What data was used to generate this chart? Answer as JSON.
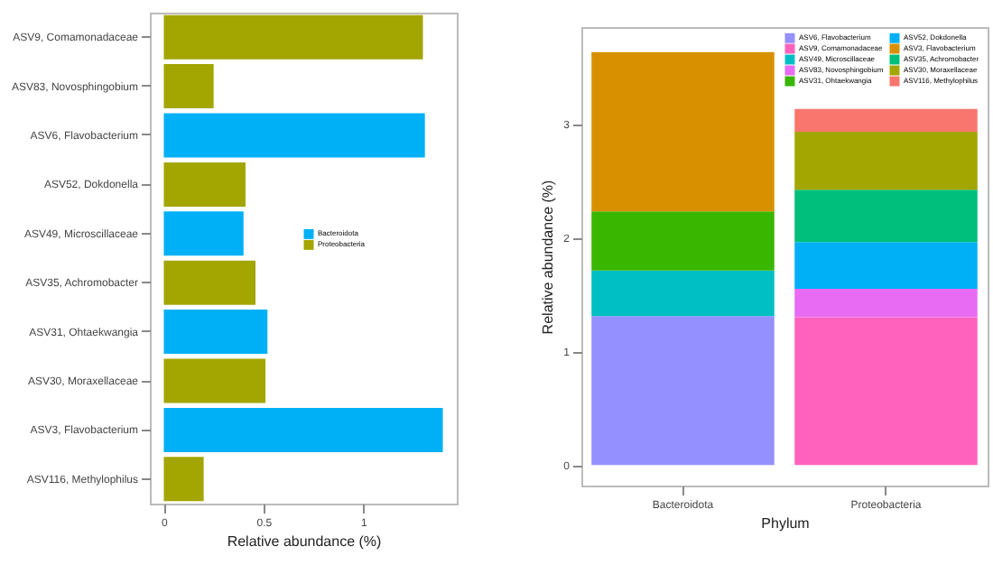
{
  "chart_data": [
    {
      "type": "bar",
      "orientation": "horizontal",
      "categories": [
        "ASV9, Comamonadaceae",
        "ASV83, Novosphingobium",
        "ASV6, Flavobacterium",
        "ASV52, Dokdonella",
        "ASV49, Microscillaceae",
        "ASV35, Achromobacter",
        "ASV31, Ohtaekwangia",
        "ASV30, Moraxellaceae",
        "ASV3, Flavobacterium",
        "ASV116, Methylophilus"
      ],
      "series": [
        {
          "name": "Bacteroidota",
          "color": "#00b0f6",
          "values": [
            null,
            null,
            1.31,
            null,
            0.4,
            null,
            0.52,
            null,
            1.4,
            null
          ]
        },
        {
          "name": "Proteobacteria",
          "color": "#a3a500",
          "values": [
            1.3,
            0.25,
            null,
            0.41,
            null,
            0.46,
            null,
            0.51,
            null,
            0.2
          ]
        }
      ],
      "xlabel": "Relative abundance (%)",
      "xlim": [
        -0.07,
        1.47
      ],
      "xticks": [
        0,
        0.5,
        1
      ],
      "grid": false,
      "legend": "right"
    },
    {
      "type": "bar",
      "stacked": true,
      "categories": [
        "Bacteroidota",
        "Proteobacteria"
      ],
      "series": [
        {
          "name": "ASV6, Flavobacterium",
          "color": "#9590ff",
          "values": [
            1.31,
            null
          ]
        },
        {
          "name": "ASV9, Comamonadaceae",
          "color": "#ff62bc",
          "values": [
            null,
            1.3
          ]
        },
        {
          "name": "ASV49, Microscillaceae",
          "color": "#00bfc4",
          "values": [
            0.4,
            null
          ]
        },
        {
          "name": "ASV83, Novosphingobium",
          "color": "#e76bf3",
          "values": [
            null,
            0.25
          ]
        },
        {
          "name": "ASV31, Ohtaekwangia",
          "color": "#39b600",
          "values": [
            0.52,
            null
          ]
        },
        {
          "name": "ASV52, Dokdonella",
          "color": "#00b0f6",
          "values": [
            null,
            0.41
          ]
        },
        {
          "name": "ASV3, Flavobacterium",
          "color": "#d89000",
          "values": [
            1.4,
            null
          ]
        },
        {
          "name": "ASV35, Achromobacter",
          "color": "#00bf7d",
          "values": [
            null,
            0.46
          ]
        },
        {
          "name": "ASV30, Moraxellaceae",
          "color": "#a3a500",
          "values": [
            null,
            0.51
          ]
        },
        {
          "name": "ASV116, Methylophilus",
          "color": "#f8766d",
          "values": [
            null,
            0.2
          ]
        }
      ],
      "xlabel": "Phylum",
      "ylabel": "Relative abundance (%)",
      "ylim": [
        -0.18,
        3.85
      ],
      "yticks": [
        0,
        1,
        2,
        3
      ],
      "grid": false,
      "legend": "top right"
    }
  ]
}
